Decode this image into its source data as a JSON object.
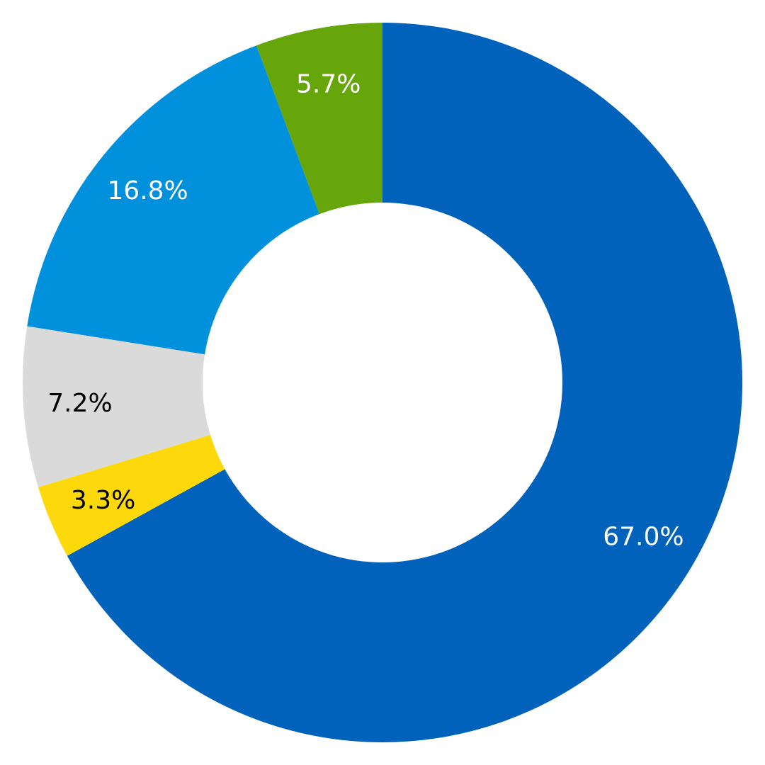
{
  "chart_data": {
    "type": "pie",
    "style": "donut",
    "start_angle_deg": 0,
    "direction": "clockwise",
    "slices": [
      {
        "value": 67.0,
        "label": "67.0%",
        "color": "#0062BA",
        "label_color": "#FFFFFF"
      },
      {
        "value": 3.3,
        "label": "3.3%",
        "color": "#FDD90B",
        "label_color": "#000000"
      },
      {
        "value": 7.2,
        "label": "7.2%",
        "color": "#DADADA",
        "label_color": "#000000"
      },
      {
        "value": 16.8,
        "label": "16.8%",
        "color": "#0090DC",
        "label_color": "#FFFFFF"
      },
      {
        "value": 5.7,
        "label": "5.7%",
        "color": "#66A60A",
        "label_color": "#FFFFFF"
      }
    ],
    "title": "",
    "legend": "none"
  }
}
